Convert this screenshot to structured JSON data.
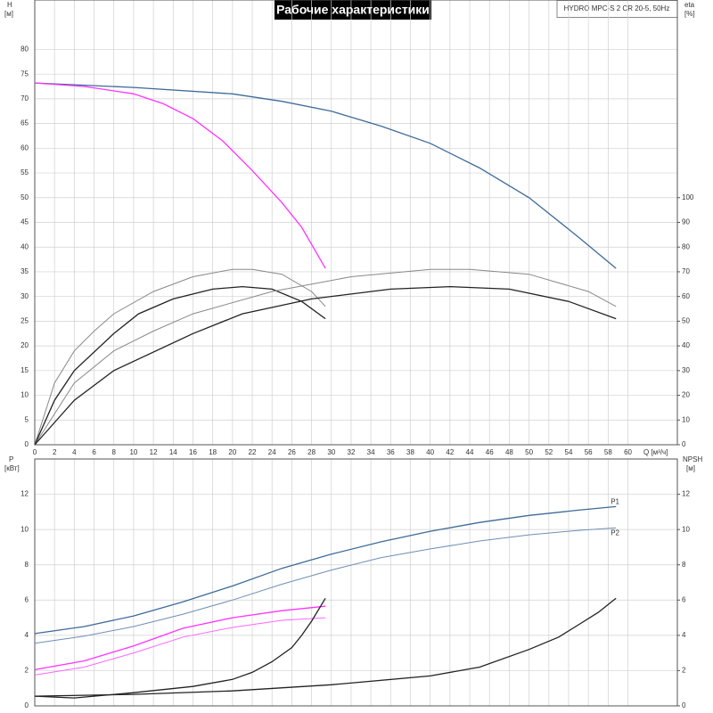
{
  "chart_data": [
    {
      "type": "line",
      "title": "Рабочие характеристики",
      "subtitle": "HYDRO MPC-S 2 CR 20-5, 50Hz",
      "y_label": "H",
      "y_unit": "[м]",
      "y2_label": "eta",
      "y2_unit": "[%]",
      "x_label": "Q [м³/ч]",
      "xlim": [
        0,
        65
      ],
      "xticks": [
        0,
        2,
        4,
        6,
        8,
        10,
        12,
        14,
        16,
        18,
        20,
        22,
        24,
        26,
        28,
        30,
        32,
        34,
        36,
        38,
        40,
        42,
        44,
        46,
        48,
        50,
        52,
        54,
        56,
        58,
        60
      ],
      "ylim": [
        0,
        90
      ],
      "yticks": [
        0,
        5,
        10,
        15,
        20,
        25,
        30,
        35,
        40,
        45,
        50,
        55,
        60,
        65,
        70,
        75,
        80
      ],
      "y2lim": [
        0,
        180
      ],
      "y2ticks": [
        0,
        10,
        20,
        30,
        40,
        50,
        60,
        70,
        80,
        90,
        100
      ],
      "grid": true,
      "series": [
        {
          "color": "#3d6a99",
          "line_width": 1.3,
          "x": [
            0,
            10,
            20,
            25,
            30,
            35,
            40,
            45,
            50,
            55,
            58.8
          ],
          "values": [
            73.2,
            72.3,
            71,
            69.5,
            67.5,
            64.5,
            61,
            56,
            50,
            42,
            35.7
          ]
        },
        {
          "color": "#ff33ff",
          "line_width": 1.3,
          "x": [
            0,
            5,
            10,
            13,
            16,
            19,
            22,
            25,
            27,
            29.4
          ],
          "values": [
            73.2,
            72.5,
            71,
            69,
            66,
            61.5,
            55.5,
            49,
            44,
            35.7
          ]
        },
        {
          "color": "#888888",
          "line_width": 1,
          "axis": "y2",
          "x": [
            0,
            2,
            4,
            6,
            8,
            12,
            16,
            20,
            22,
            25,
            28,
            29.4
          ],
          "values": [
            0,
            25,
            38,
            46,
            53,
            62,
            68,
            71,
            71,
            69,
            62,
            56
          ]
        },
        {
          "color": "#222222",
          "line_width": 1.3,
          "axis": "y2",
          "x": [
            0,
            2,
            4,
            8,
            10.5,
            14,
            18,
            21,
            24,
            27,
            29.4
          ],
          "values": [
            0,
            18,
            30,
            45,
            53,
            59,
            63,
            64,
            63,
            58,
            51
          ]
        },
        {
          "color": "#888888",
          "line_width": 1,
          "axis": "y2",
          "x": [
            0,
            4,
            8,
            12,
            16,
            24,
            32,
            40,
            44,
            50,
            56,
            58.8
          ],
          "values": [
            0,
            25,
            38,
            46,
            53,
            62,
            68,
            71,
            71,
            69,
            62,
            56
          ]
        },
        {
          "color": "#222222",
          "line_width": 1.3,
          "axis": "y2",
          "x": [
            0,
            4,
            8,
            16,
            21,
            28,
            36,
            42,
            48,
            54,
            58.8
          ],
          "values": [
            0,
            18,
            30,
            45,
            53,
            59,
            63,
            64,
            63,
            58,
            51
          ]
        }
      ]
    },
    {
      "type": "line",
      "y_label": "P",
      "y_unit": "[кВт]",
      "y2_label": "NPSH",
      "y2_unit": "[м]",
      "xlim": [
        0,
        65
      ],
      "xticks": [
        0,
        2,
        4,
        6,
        8,
        10,
        12,
        14,
        16,
        18,
        20,
        22,
        24,
        26,
        28,
        30,
        32,
        34,
        36,
        38,
        40,
        42,
        44,
        46,
        48,
        50,
        52,
        54,
        56,
        58,
        60
      ],
      "ylim": [
        0,
        14
      ],
      "yticks": [
        0,
        2,
        4,
        6,
        8,
        10,
        12
      ],
      "y2lim": [
        0,
        14
      ],
      "y2ticks": [
        0,
        2,
        4,
        6,
        8,
        10,
        12
      ],
      "grid": true,
      "series": [
        {
          "name": "P1",
          "color": "#3d6a99",
          "line_width": 1.3,
          "x": [
            0,
            5,
            10,
            15,
            20,
            25,
            30,
            35,
            40,
            45,
            50,
            55,
            58.8
          ],
          "values": [
            4.1,
            4.5,
            5.1,
            5.9,
            6.8,
            7.8,
            8.6,
            9.3,
            9.9,
            10.4,
            10.8,
            11.1,
            11.3
          ]
        },
        {
          "name": "P2",
          "color": "#6f8fb5",
          "line_width": 1,
          "x": [
            0,
            5,
            10,
            15,
            20,
            25,
            30,
            35,
            40,
            45,
            50,
            55,
            58.8
          ],
          "values": [
            3.55,
            3.95,
            4.5,
            5.2,
            6.0,
            6.9,
            7.7,
            8.4,
            8.9,
            9.35,
            9.7,
            9.95,
            10.1
          ]
        },
        {
          "color": "#ff33ff",
          "line_width": 1.3,
          "x": [
            0,
            5,
            10,
            15,
            20,
            25,
            29.4
          ],
          "values": [
            2.05,
            2.55,
            3.4,
            4.4,
            5.0,
            5.4,
            5.65
          ]
        },
        {
          "color": "#ff66ff",
          "line_width": 1,
          "x": [
            0,
            5,
            10,
            15,
            20,
            25,
            29.4
          ],
          "values": [
            1.75,
            2.2,
            3.0,
            3.9,
            4.45,
            4.85,
            5.0
          ]
        },
        {
          "color": "#222222",
          "line_width": 1.3,
          "axis": "y2",
          "x": [
            0,
            4,
            10,
            16,
            20,
            22,
            24,
            26,
            27,
            28,
            29.4
          ],
          "values": [
            0.55,
            0.45,
            0.75,
            1.1,
            1.5,
            1.9,
            2.5,
            3.3,
            4,
            4.8,
            6.1
          ]
        },
        {
          "color": "#222222",
          "line_width": 1.3,
          "axis": "y2",
          "x": [
            0,
            10,
            20,
            30,
            40,
            45,
            50,
            53,
            55,
            57,
            58.8
          ],
          "values": [
            0.55,
            0.65,
            0.85,
            1.2,
            1.7,
            2.2,
            3.2,
            3.9,
            4.6,
            5.3,
            6.1
          ]
        }
      ]
    }
  ]
}
